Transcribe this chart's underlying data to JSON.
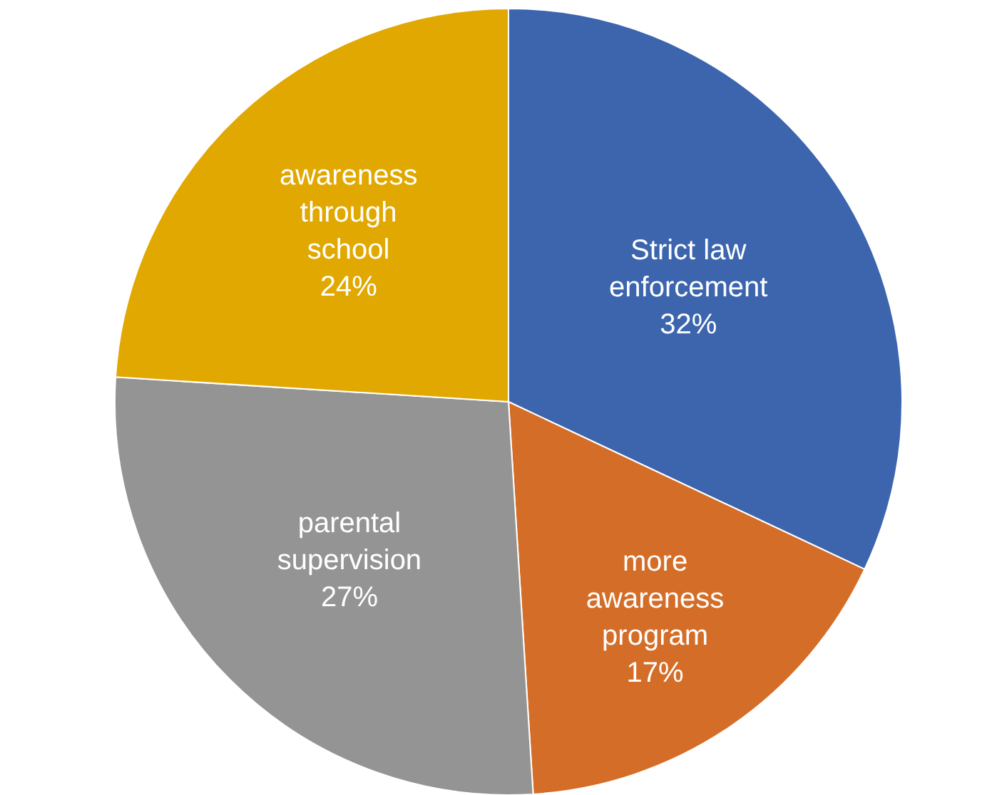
{
  "chart_data": {
    "type": "pie",
    "categories": [
      "Strict law enforcement",
      "more awareness program",
      "parental supervision",
      "awareness through school"
    ],
    "values": [
      32,
      17,
      27,
      24
    ],
    "colors": [
      "#3c65ae",
      "#d46d27",
      "#949494",
      "#e0a800"
    ],
    "value_labels": [
      "32%",
      "17%",
      "27%",
      "24%"
    ],
    "legend": false
  }
}
